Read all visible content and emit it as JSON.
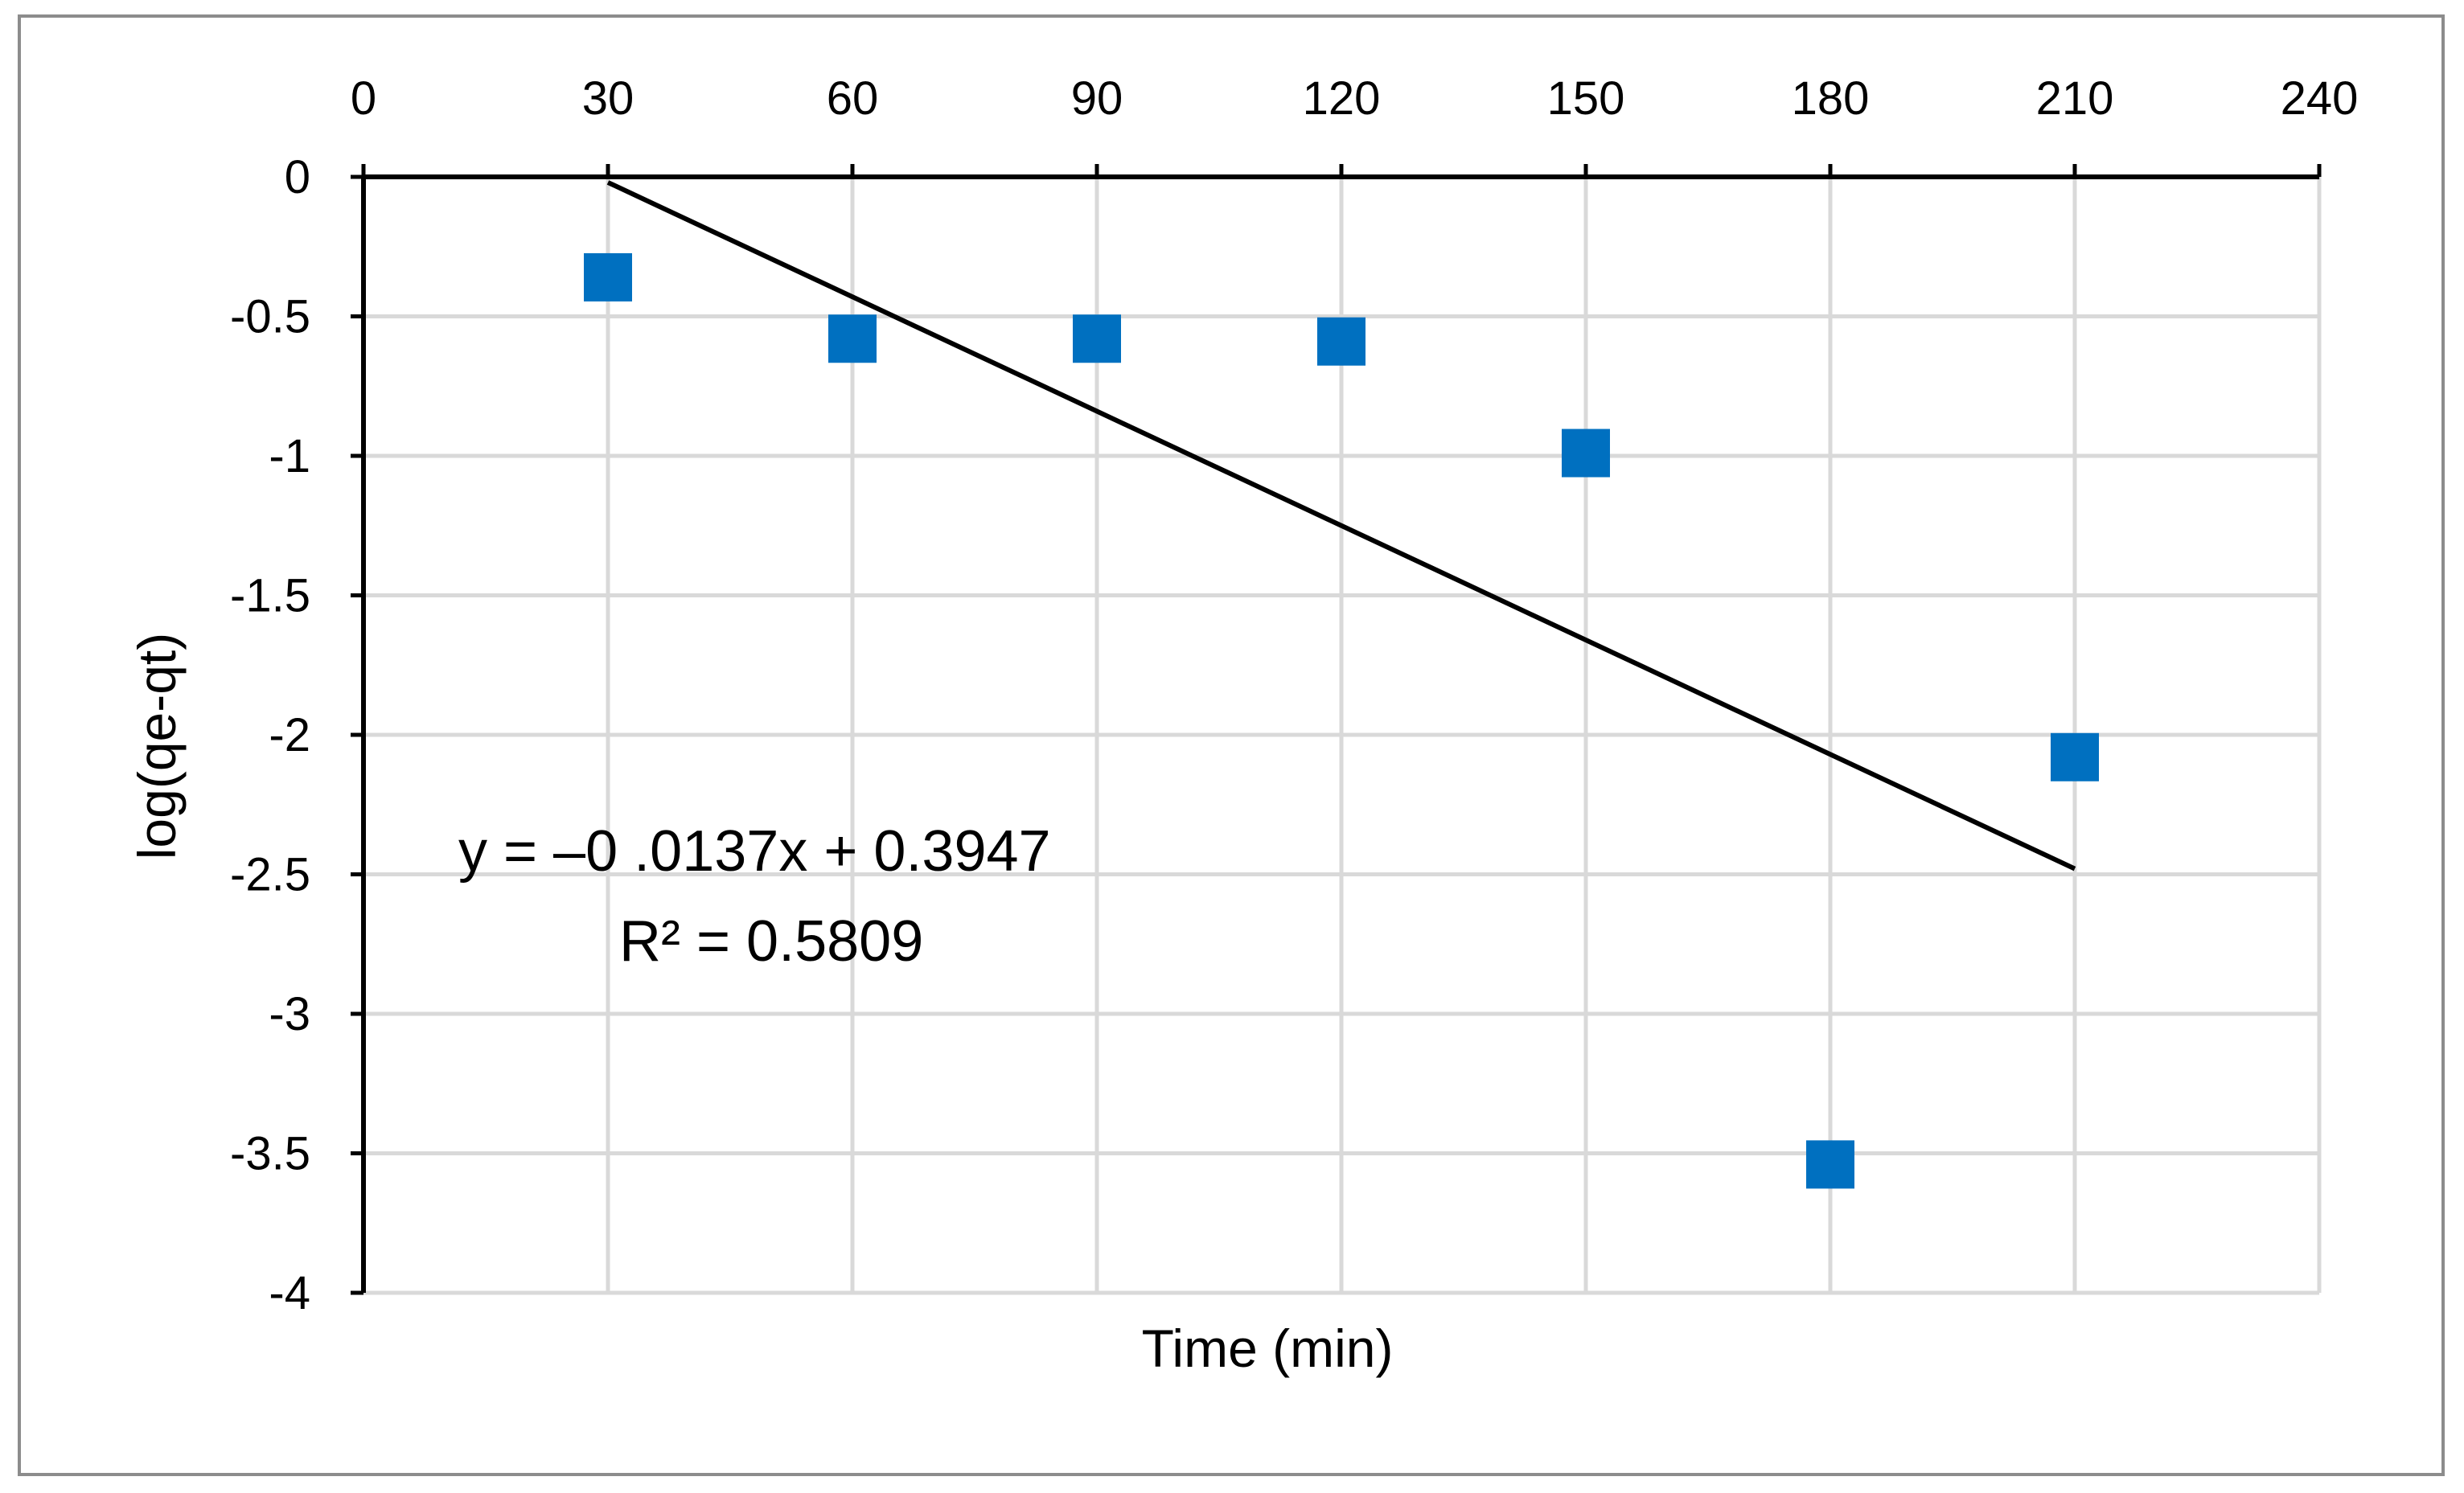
{
  "chart_data": {
    "type": "scatter",
    "title": "",
    "xlabel": "Time (min)",
    "ylabel": "log(qe-qt)",
    "x_ticks": [
      "0",
      "30",
      "60",
      "90",
      "120",
      "150",
      "180",
      "210",
      "240"
    ],
    "y_ticks": [
      "0",
      "-0.5",
      "-1",
      "-1.5",
      "-2",
      "-2.5",
      "-3",
      "-3.5",
      "-4"
    ],
    "xlim": [
      0,
      240
    ],
    "ylim": [
      -4,
      0
    ],
    "x_axis_position": "top",
    "grid": true,
    "series": [
      {
        "name": "log(qe-qt)",
        "marker": "square",
        "color": "#0070c0",
        "x": [
          30,
          60,
          90,
          120,
          150,
          180,
          210
        ],
        "y": [
          -0.36,
          -0.58,
          -0.58,
          -0.59,
          -0.99,
          -3.54,
          -2.08
        ]
      }
    ],
    "trendline": {
      "type": "linear",
      "color": "#000000",
      "x_range": [
        30,
        210
      ],
      "y_values": [
        -0.02,
        -2.48
      ],
      "equation": "y = –0 .0137x + 0.3947",
      "r_squared": "R² = 0.5809"
    }
  }
}
